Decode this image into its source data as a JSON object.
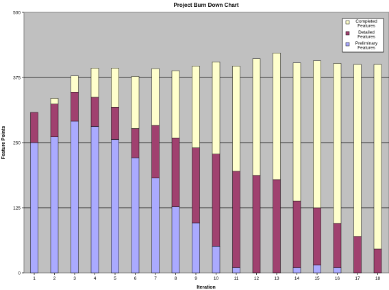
{
  "chart_data": {
    "type": "bar",
    "stacked": true,
    "title": "Project Burn Down Chart",
    "xlabel": "Iteration",
    "ylabel": "Feature Points",
    "ylim": [
      0,
      500
    ],
    "yticks": [
      0,
      125,
      250,
      375,
      500
    ],
    "grid": true,
    "legend_position": "top-right",
    "categories": [
      "1",
      "2",
      "3",
      "4",
      "5",
      "6",
      "7",
      "8",
      "9",
      "10",
      "11",
      "12",
      "13",
      "14",
      "15",
      "16",
      "17",
      "18"
    ],
    "series": [
      {
        "name": "Preliminary Features",
        "color": "#aaaaff",
        "values": [
          250,
          261,
          291,
          281,
          256,
          221,
          182,
          127,
          96,
          51,
          10,
          0,
          0,
          10,
          15,
          10,
          0,
          0
        ]
      },
      {
        "name": "Detailed Features",
        "color": "#a0416f",
        "values": [
          58,
          63,
          56,
          56,
          62,
          56,
          101,
          132,
          144,
          177,
          185,
          187,
          179,
          128,
          110,
          85,
          70,
          46
        ]
      },
      {
        "name": "Completed Features",
        "color": "#ffffcc",
        "values": [
          0,
          11,
          31,
          56,
          75,
          100,
          109,
          129,
          157,
          177,
          202,
          224,
          243,
          265,
          282,
          307,
          330,
          354
        ]
      }
    ]
  }
}
